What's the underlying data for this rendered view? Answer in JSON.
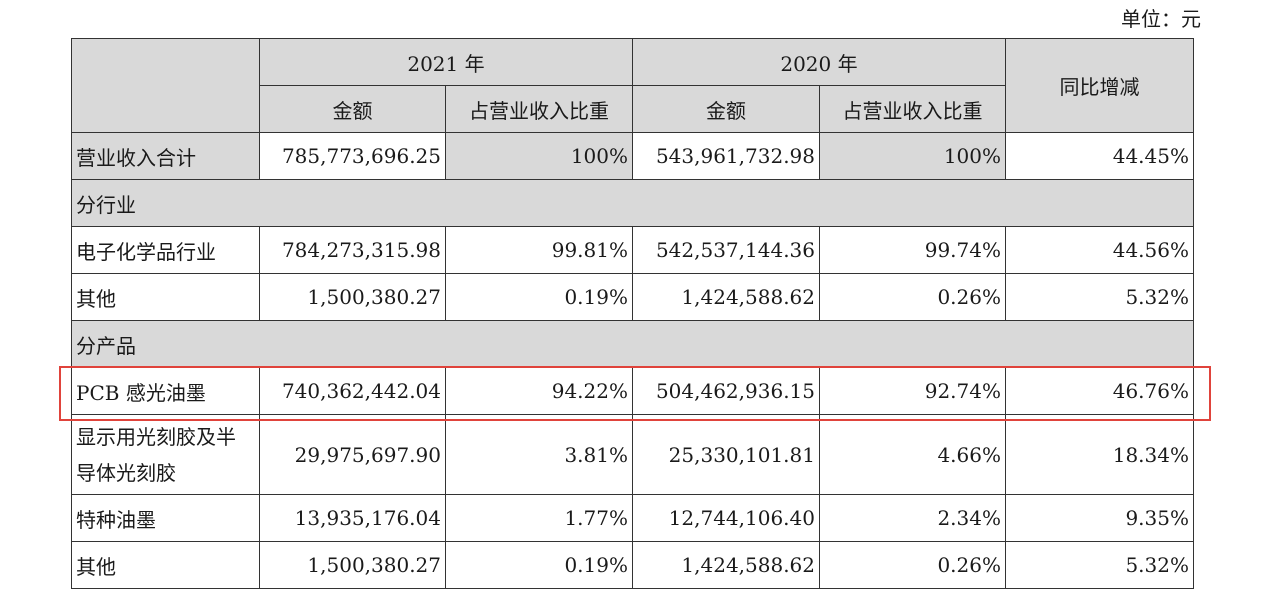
{
  "unit_label": "单位：元",
  "header": {
    "year_2021": "2021 年",
    "year_2020": "2020 年",
    "yoy": "同比增减",
    "amount": "金额",
    "ratio": "占营业收入比重"
  },
  "rows": [
    {
      "label": "营业收入合计",
      "a2021": "785,773,696.25",
      "r2021": "100%",
      "a2020": "543,961,732.98",
      "r2020": "100%",
      "yoy": "44.45%"
    },
    {
      "section": "分行业"
    },
    {
      "label": "电子化学品行业",
      "a2021": "784,273,315.98",
      "r2021": "99.81%",
      "a2020": "542,537,144.36",
      "r2020": "99.74%",
      "yoy": "44.56%"
    },
    {
      "label": "其他",
      "a2021": "1,500,380.27",
      "r2021": "0.19%",
      "a2020": "1,424,588.62",
      "r2020": "0.26%",
      "yoy": "5.32%"
    },
    {
      "section": "分产品"
    },
    {
      "label": "PCB 感光油墨",
      "a2021": "740,362,442.04",
      "r2021": "94.22%",
      "a2020": "504,462,936.15",
      "r2020": "92.74%",
      "yoy": "46.76%"
    },
    {
      "label": "显示用光刻胶及半导体光刻胶",
      "a2021": "29,975,697.90",
      "r2021": "3.81%",
      "a2020": "25,330,101.81",
      "r2020": "4.66%",
      "yoy": "18.34%"
    },
    {
      "label": "特种油墨",
      "a2021": "13,935,176.04",
      "r2021": "1.77%",
      "a2020": "12,744,106.40",
      "r2020": "2.34%",
      "yoy": "9.35%"
    },
    {
      "label": "其他",
      "a2021": "1,500,380.27",
      "r2021": "0.19%",
      "a2020": "1,424,588.62",
      "r2020": "0.26%",
      "yoy": "5.32%"
    }
  ],
  "colors": {
    "header_bg": "#d9d9d9",
    "highlight_border": "#e0433b"
  }
}
